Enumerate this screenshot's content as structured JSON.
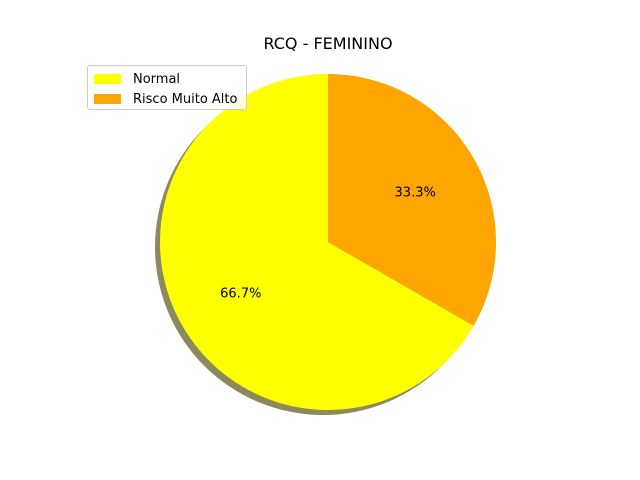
{
  "chart_data": {
    "type": "pie",
    "title": "RCQ - FEMININO",
    "categories": [
      "Normal",
      "Risco Muito Alto"
    ],
    "values": [
      66.7,
      33.3
    ],
    "labels": [
      "66.7%",
      "33.3%"
    ],
    "colors": [
      "#ffff00",
      "#ffa500"
    ],
    "start_angle_deg": 90,
    "direction": "counterclockwise",
    "shadow": true,
    "legend_placement": "upper-left"
  }
}
